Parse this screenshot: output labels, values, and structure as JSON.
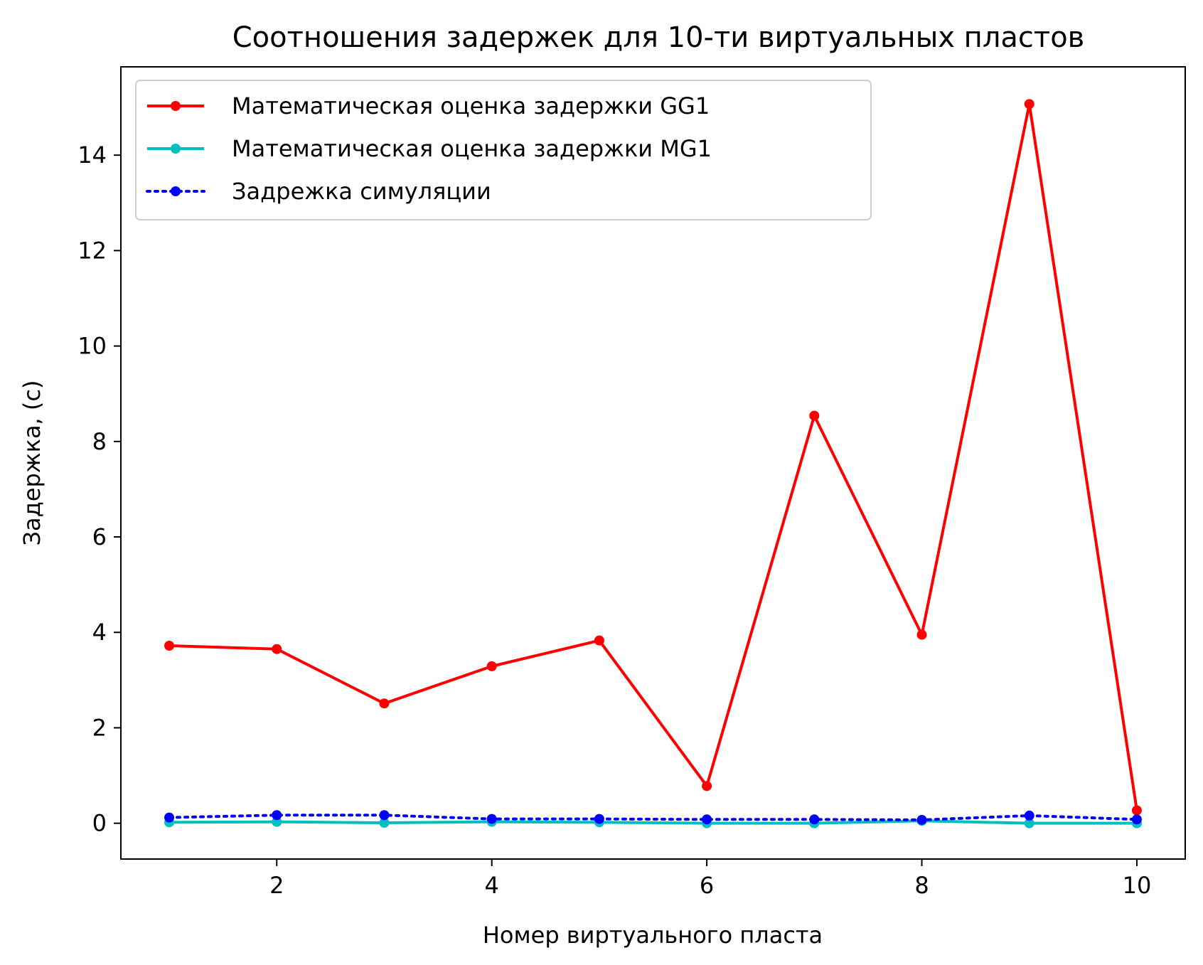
{
  "chart_data": {
    "type": "line",
    "title": "Соотношения задержек для 10-ти виртуальных пластов",
    "xlabel": "Номер виртуального пласта",
    "ylabel": "Задержка, (с)",
    "x": [
      1,
      2,
      3,
      4,
      5,
      6,
      7,
      8,
      9,
      10
    ],
    "xlim": [
      0.55,
      10.45
    ],
    "ylim": [
      -0.75,
      15.85
    ],
    "xticks": [
      2,
      4,
      6,
      8,
      10
    ],
    "yticks": [
      0,
      2,
      4,
      6,
      8,
      10,
      12,
      14
    ],
    "grid": false,
    "legend_position": "top-left",
    "series": [
      {
        "name": "Математическая оценка задержки GG1",
        "color": "#ff0000",
        "line_style": "solid",
        "marker": "dot",
        "values": [
          3.72,
          3.65,
          2.51,
          3.29,
          3.83,
          0.78,
          8.54,
          3.95,
          15.07,
          0.27
        ]
      },
      {
        "name": "Математическая оценка задержки MG1",
        "color": "#00bfbf",
        "line_style": "solid",
        "marker": "dot",
        "values": [
          0.02,
          0.03,
          0.01,
          0.03,
          0.02,
          0.0,
          0.0,
          0.05,
          0.0,
          0.0
        ]
      },
      {
        "name": "Задрежка симуляции",
        "color": "#0000ff",
        "line_style": "dotted",
        "marker": "dot",
        "values": [
          0.12,
          0.17,
          0.17,
          0.09,
          0.09,
          0.08,
          0.08,
          0.07,
          0.16,
          0.08
        ]
      }
    ]
  }
}
